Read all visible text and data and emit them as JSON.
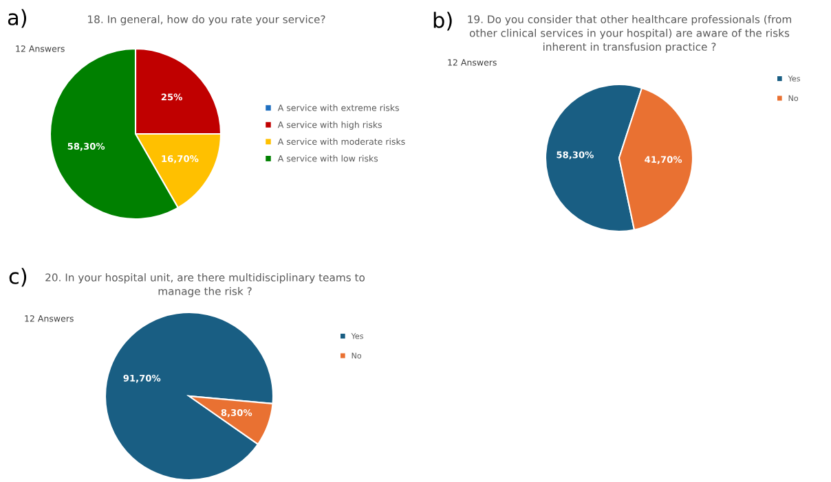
{
  "chart_data": [
    {
      "type": "pie",
      "title": "18. In general, how do you rate your service?",
      "annotations": [
        "a)",
        "12 Answers"
      ],
      "categories": [
        "A service with extreme risks",
        "A service with high risks",
        "A service with moderate risks",
        "A service with low risks"
      ],
      "values": [
        0,
        25,
        16.7,
        58.3
      ],
      "colors": [
        "#1f6fc0",
        "#c00000",
        "#ffc000",
        "#008000"
      ],
      "value_labels": [
        null,
        "25%",
        "16,70%",
        "58,30%"
      ],
      "legend": "right"
    },
    {
      "type": "pie",
      "title": "19. Do you consider that other healthcare professionals (from\nother clinical services in your hospital) are aware of the risks\ninherent in transfusion practice ?",
      "annotations": [
        "b)",
        "12 Answers"
      ],
      "categories": [
        "Yes",
        "No"
      ],
      "values": [
        58.3,
        41.7
      ],
      "colors": [
        "#195e83",
        "#e97132"
      ],
      "value_labels": [
        "58,30%",
        "41,70%"
      ],
      "legend": "top right"
    },
    {
      "type": "pie",
      "title": "20. In your hospital unit, are there multidisciplinary teams to\nmanage the risk ?",
      "annotations": [
        "c)",
        "12 Answers"
      ],
      "categories": [
        "Yes",
        "No"
      ],
      "values": [
        91.7,
        8.3
      ],
      "colors": [
        "#195e83",
        "#e97132"
      ],
      "value_labels": [
        "91,70%",
        "8,30%"
      ],
      "legend": "top right"
    }
  ]
}
